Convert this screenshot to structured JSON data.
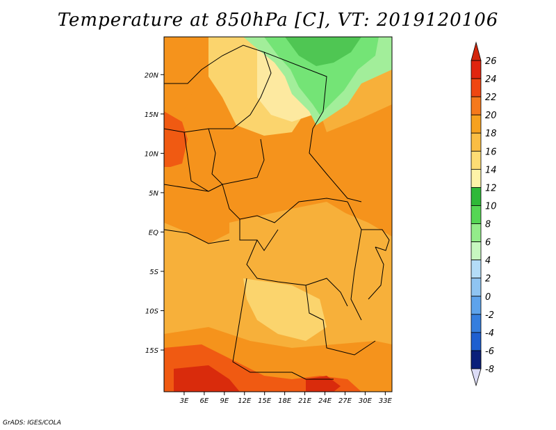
{
  "title": "Temperature at 850hPa [C], VT: 2019120106",
  "credit": "GrADS: IGES/COLA",
  "map": {
    "variable": "Temperature at 850hPa",
    "units": "C",
    "valid_time": "2019120106",
    "lon_range": [
      0,
      34
    ],
    "lat_range": [
      -20,
      25
    ],
    "lat_ticks": [
      {
        "value": 20,
        "label": "20N"
      },
      {
        "value": 15,
        "label": "15N"
      },
      {
        "value": 10,
        "label": "10N"
      },
      {
        "value": 5,
        "label": "5N"
      },
      {
        "value": 0,
        "label": "EQ"
      },
      {
        "value": -5,
        "label": "5S"
      },
      {
        "value": -10,
        "label": "10S"
      },
      {
        "value": -15,
        "label": "15S"
      }
    ],
    "lon_ticks": [
      {
        "value": 3,
        "label": "3E"
      },
      {
        "value": 6,
        "label": "6E"
      },
      {
        "value": 9,
        "label": "9E"
      },
      {
        "value": 12,
        "label": "12E"
      },
      {
        "value": 15,
        "label": "15E"
      },
      {
        "value": 18,
        "label": "18E"
      },
      {
        "value": 21,
        "label": "21E"
      },
      {
        "value": 24,
        "label": "24E"
      },
      {
        "value": 27,
        "label": "27E"
      },
      {
        "value": 30,
        "label": "30E"
      },
      {
        "value": 33,
        "label": "33E"
      }
    ],
    "field_colors": {
      "c26": "#d92b0c",
      "c24": "#f05a12",
      "c22": "#f5931c",
      "c20": "#f7b03a",
      "c18": "#fbd46d",
      "c16": "#fde9a0",
      "green_light": "#a2ee9a",
      "green": "#74e476",
      "green_dark": "#4fc653"
    }
  },
  "colorbar": {
    "levels": [
      {
        "label": "26",
        "color": "#e0250f"
      },
      {
        "label": "24",
        "color": "#ef4611"
      },
      {
        "label": "22",
        "color": "#f5791c"
      },
      {
        "label": "20",
        "color": "#f6a11f"
      },
      {
        "label": "18",
        "color": "#fabd44"
      },
      {
        "label": "16",
        "color": "#fddc74"
      },
      {
        "label": "14",
        "color": "#fef3a8"
      },
      {
        "label": "12",
        "color": "#2fb838"
      },
      {
        "label": "10",
        "color": "#55d654"
      },
      {
        "label": "8",
        "color": "#93ec8a"
      },
      {
        "label": "6",
        "color": "#c7f7c0"
      },
      {
        "label": "4",
        "color": "#b4dcf7"
      },
      {
        "label": "2",
        "color": "#8fc4f1"
      },
      {
        "label": "0",
        "color": "#5ea3eb"
      },
      {
        "label": "-2",
        "color": "#357ede"
      },
      {
        "label": "-4",
        "color": "#1e5fd0"
      },
      {
        "label": "-6",
        "color": "#1340a8"
      },
      {
        "label": "-8",
        "color": "#0a1f7a"
      }
    ],
    "below_color": "#dcdcf6",
    "above_color": "#d3260c"
  }
}
